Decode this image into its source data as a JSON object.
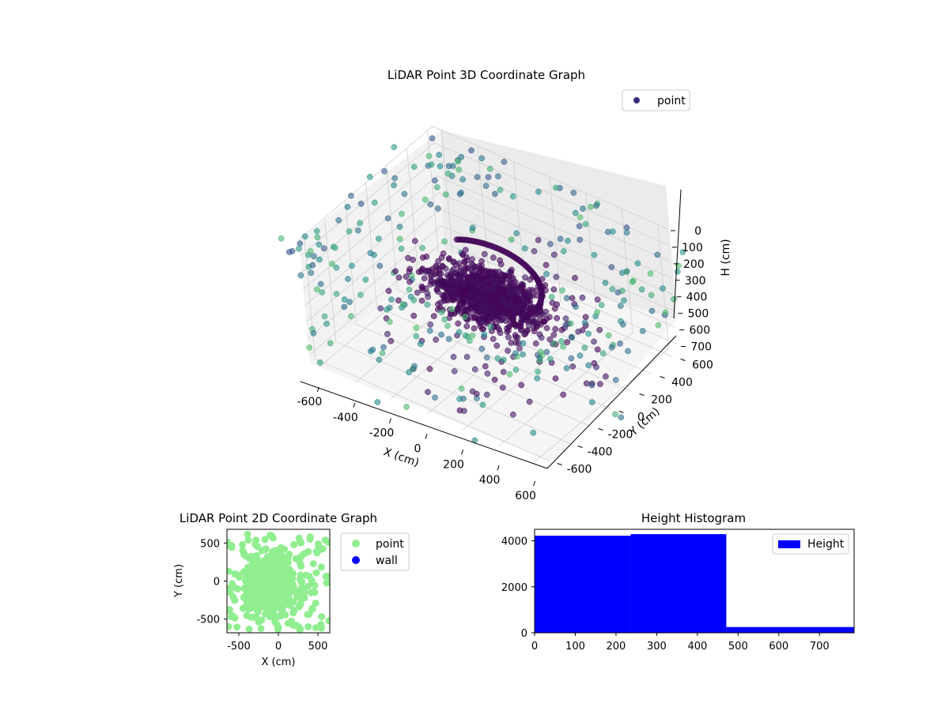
{
  "chart_data": [
    {
      "type": "scatter",
      "projection": "3d",
      "title": "LiDAR Point 3D Coordinate Graph",
      "xlabel": "X (cm)",
      "ylabel": "Y (cm)",
      "zlabel": "H (cm)",
      "xlim": [
        -650,
        650
      ],
      "ylim": [
        -650,
        650
      ],
      "zlim": [
        750,
        0
      ],
      "xticks": [
        "-600",
        "-400",
        "-200",
        "0",
        "200",
        "400",
        "600"
      ],
      "yticks": [
        "-600",
        "-400",
        "-200",
        "0",
        "200",
        "400",
        "600"
      ],
      "zticks": [
        "0",
        "100",
        "200",
        "300",
        "400",
        "500",
        "600",
        "700"
      ],
      "legend": {
        "entries": [
          "point"
        ],
        "placement": "top-right"
      },
      "grid": true,
      "colormap": "viridis",
      "series": [
        {
          "name": "point",
          "color": "#3b2c7a",
          "clusters": [
            {
              "part": "wall ring",
              "x_range": [
                -650,
                650
              ],
              "y_range": [
                -650,
                650
              ],
              "h_range": [
                0,
                750
              ]
            },
            {
              "part": "arc",
              "x_range": [
                -300,
                150
              ],
              "y_range": [
                -150,
                300
              ],
              "h_range": [
                250,
                400
              ]
            },
            {
              "part": "dense body",
              "x_range": [
                -300,
                300
              ],
              "y_range": [
                -200,
                200
              ],
              "h_range": [
                300,
                470
              ]
            }
          ]
        }
      ]
    },
    {
      "type": "scatter",
      "title": "LiDAR Point 2D Coordinate Graph",
      "xlabel": "X (cm)",
      "ylabel": "Y (cm)",
      "xlim": [
        -650,
        650
      ],
      "ylim": [
        -680,
        680
      ],
      "xticks": [
        "-500",
        "0",
        "500"
      ],
      "yticks": [
        "-500",
        "0",
        "500"
      ],
      "legend": {
        "entries": [
          "point",
          "wall"
        ],
        "placement": "outside-right"
      },
      "series": [
        {
          "name": "point",
          "color": "#90ee90",
          "center": [
            -100,
            -50
          ],
          "spread_cm": 300,
          "extent_cm": 650
        },
        {
          "name": "wall",
          "color": "#0000ff"
        }
      ]
    },
    {
      "type": "bar",
      "title": "Height Histogram",
      "xlim": [
        0,
        785
      ],
      "ylim": [
        0,
        4500
      ],
      "xticks": [
        "0",
        "100",
        "200",
        "300",
        "400",
        "500",
        "600",
        "700"
      ],
      "yticks": [
        "0",
        "2000",
        "4000"
      ],
      "legend": {
        "entries": [
          "Height"
        ],
        "placement": "top-right"
      },
      "series": [
        {
          "name": "Height",
          "color": "#0000ff",
          "bins": [
            {
              "start": 0,
              "end": 236,
              "count": 4220
            },
            {
              "start": 236,
              "end": 471,
              "count": 4290
            },
            {
              "start": 471,
              "end": 785,
              "count": 250
            }
          ]
        }
      ]
    }
  ]
}
